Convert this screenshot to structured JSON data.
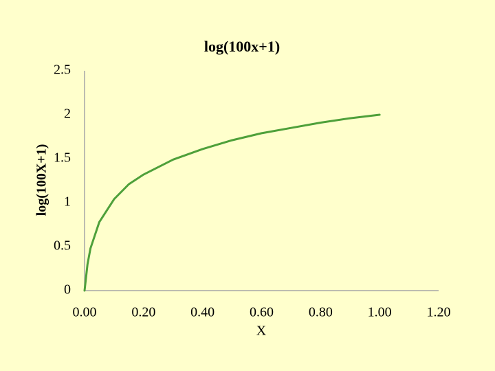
{
  "chart_data": {
    "type": "line",
    "title": "log(100x+1)",
    "x_label": "X",
    "y_label": "log(100X+1)",
    "x": [
      0,
      0.01,
      0.02,
      0.05,
      0.1,
      0.15,
      0.2,
      0.3,
      0.4,
      0.5,
      0.6,
      0.7,
      0.8,
      0.9,
      1.0
    ],
    "values": [
      0,
      0.3,
      0.48,
      0.78,
      1.04,
      1.21,
      1.32,
      1.49,
      1.61,
      1.71,
      1.79,
      1.85,
      1.91,
      1.96,
      2.0
    ],
    "color": "#4ea03a",
    "xlim": [
      0,
      1.2
    ],
    "xticks": [
      {
        "value": 0,
        "label": "0.00"
      },
      {
        "value": 0.2,
        "label": "0.20"
      },
      {
        "value": 0.4,
        "label": "0.40"
      },
      {
        "value": 0.6,
        "label": "0.60"
      },
      {
        "value": 0.8,
        "label": "0.80"
      },
      {
        "value": 1.0,
        "label": "1.00"
      },
      {
        "value": 1.2,
        "label": "1.20"
      }
    ],
    "ylim": [
      0,
      2.5
    ],
    "yticks": [
      0,
      0.5,
      1,
      1.5,
      2,
      2.5
    ],
    "grid": false
  }
}
